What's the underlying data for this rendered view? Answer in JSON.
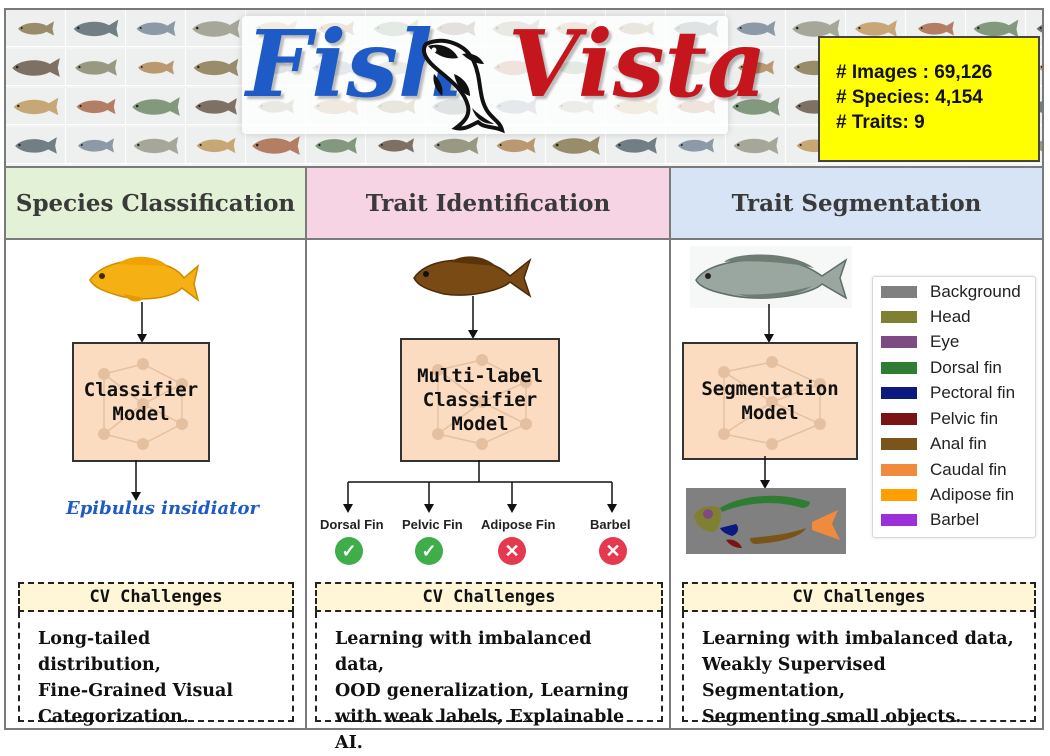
{
  "banner": {
    "logo_left": "Fish",
    "logo_right": "Vista",
    "stats": {
      "images": "# Images : 69,126",
      "species": "# Species: 4,154",
      "traits": "# Traits: 9"
    }
  },
  "columns": [
    {
      "title": "Species Classification",
      "model": "Classifier\nModel",
      "output": "Epibulus insidiator",
      "challenges_title": "CV Challenges",
      "challenges": [
        "Long-tailed distribution,",
        "Fine-Grained Visual",
        "Categorization."
      ]
    },
    {
      "title": "Trait Identification",
      "model": "Multi-label\nClassifier\nModel",
      "traits": [
        {
          "label": "Dorsal Fin",
          "present": true
        },
        {
          "label": "Pelvic Fin",
          "present": true
        },
        {
          "label": "Adipose Fin",
          "present": false
        },
        {
          "label": "Barbel",
          "present": false
        }
      ],
      "challenges_title": "CV Challenges",
      "challenges": [
        "Learning with imbalanced data,",
        "OOD generalization, Learning",
        "with weak labels, Explainable AI."
      ]
    },
    {
      "title": "Trait Segmentation",
      "model": "Segmentation\nModel",
      "challenges_title": "CV Challenges",
      "challenges": [
        "Learning with imbalanced data,",
        "Weakly Supervised Segmentation,",
        "Segmenting small objects."
      ]
    }
  ],
  "legend": [
    {
      "label": "Background",
      "color": "#808080"
    },
    {
      "label": "Head",
      "color": "#808033"
    },
    {
      "label": "Eye",
      "color": "#7e4a82"
    },
    {
      "label": "Dorsal fin",
      "color": "#2e7d32"
    },
    {
      "label": "Pectoral fin",
      "color": "#0a1a80"
    },
    {
      "label": "Pelvic fin",
      "color": "#7a1414"
    },
    {
      "label": "Anal fin",
      "color": "#7a5418"
    },
    {
      "label": "Caudal fin",
      "color": "#f08a3c"
    },
    {
      "label": "Adipose fin",
      "color": "#ffa000"
    },
    {
      "label": "Barbel",
      "color": "#9b30d9"
    }
  ]
}
